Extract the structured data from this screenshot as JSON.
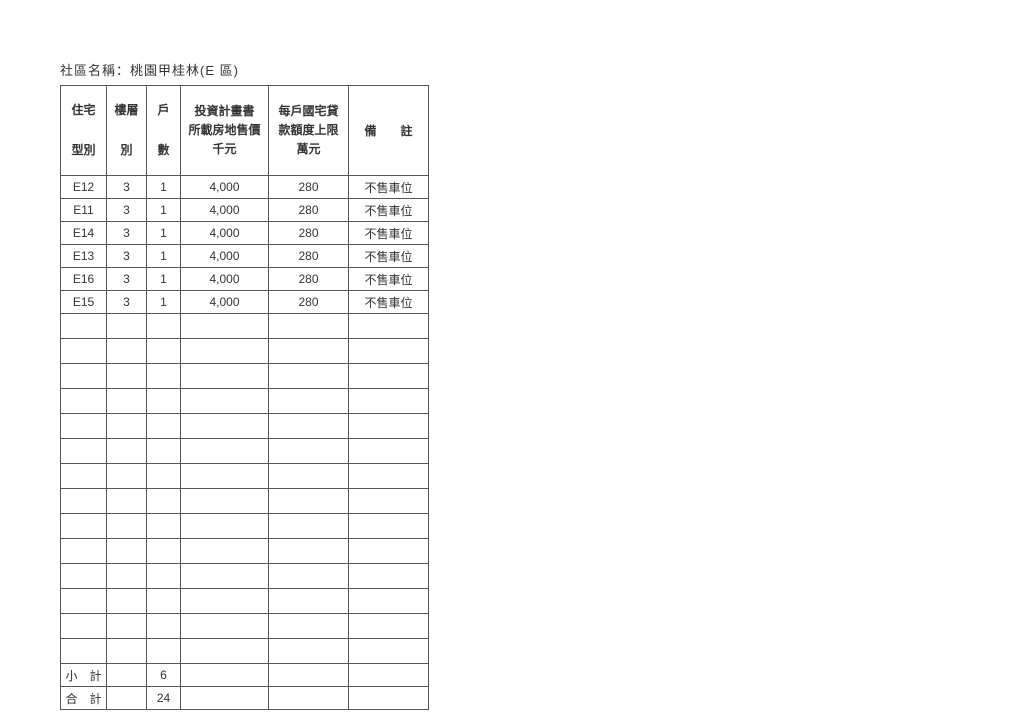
{
  "title_label": "社區名稱：",
  "title_value": "桃園甲桂林(E 區)",
  "columns": {
    "a_l1": "住宅",
    "a_l2": "型別",
    "b_l1": "樓層",
    "b_l2": "別",
    "c_l1": "戶",
    "c_l2": "數",
    "d_l1": "投資計畫書",
    "d_l2": "所載房地售價",
    "d_l3": "千元",
    "e_l1": "每戶國宅貸",
    "e_l2": "款額度上限",
    "e_l3": "萬元",
    "f": "備　　註"
  },
  "rows": [
    {
      "a": "E12",
      "b": "3",
      "c": "1",
      "d": "4,000",
      "e": "280",
      "f": "不售車位"
    },
    {
      "a": "E11",
      "b": "3",
      "c": "1",
      "d": "4,000",
      "e": "280",
      "f": "不售車位"
    },
    {
      "a": "E14",
      "b": "3",
      "c": "1",
      "d": "4,000",
      "e": "280",
      "f": "不售車位"
    },
    {
      "a": "E13",
      "b": "3",
      "c": "1",
      "d": "4,000",
      "e": "280",
      "f": "不售車位"
    },
    {
      "a": "E16",
      "b": "3",
      "c": "1",
      "d": "4,000",
      "e": "280",
      "f": "不售車位"
    },
    {
      "a": "E15",
      "b": "3",
      "c": "1",
      "d": "4,000",
      "e": "280",
      "f": "不售車位"
    }
  ],
  "empty_row_count": 14,
  "subtotal": {
    "label": "小　計",
    "c": "6"
  },
  "total": {
    "label": "合　計",
    "c": "24"
  },
  "style": {
    "border_color": "#555555",
    "text_color": "#333333",
    "background_color": "#ffffff",
    "font_size_body": 12,
    "font_size_title": 13
  }
}
